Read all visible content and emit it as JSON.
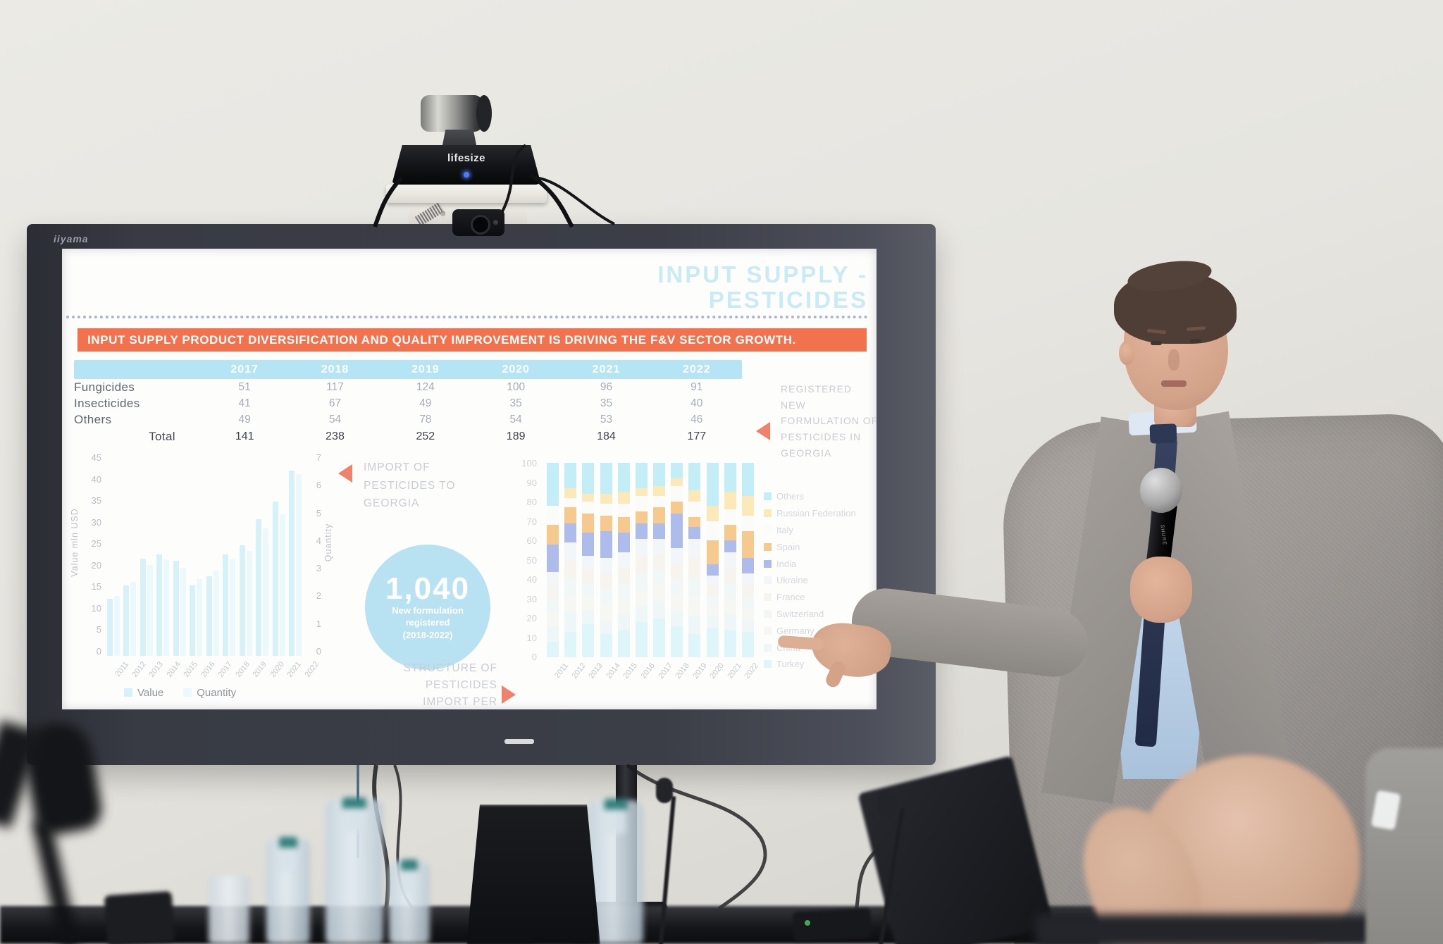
{
  "scene": {
    "tv_brand": "iiyama",
    "camera_brand": "lifesize",
    "mic_brand": "SHURE"
  },
  "colors": {
    "accent_orange": "#f3724e",
    "triangle_orange": "#f0816b",
    "title_cyan": "#c8ebf5",
    "table_header_blue": "#b5e5f4",
    "circle_blue": "#b8e2f1"
  },
  "slide": {
    "title_line1": "INPUT SUPPLY -",
    "title_line2": "PESTICIDES",
    "banner": "INPUT SUPPLY PRODUCT DIVERSIFICATION AND QUALITY IMPROVEMENT IS DRIVING THE F&V SECTOR GROWTH.",
    "table": {
      "col_headers": [
        "2017",
        "2018",
        "2019",
        "2020",
        "2021",
        "2022"
      ],
      "rows": [
        {
          "label": "Fungicides",
          "values": [
            "51",
            "117",
            "124",
            "100",
            "96",
            "91"
          ]
        },
        {
          "label": "Insecticides",
          "values": [
            "41",
            "67",
            "49",
            "35",
            "35",
            "40"
          ]
        },
        {
          "label": "Others",
          "values": [
            "49",
            "54",
            "78",
            "54",
            "53",
            "46"
          ]
        }
      ],
      "total_label": "Total",
      "total_values": [
        "141",
        "238",
        "252",
        "189",
        "184",
        "177"
      ]
    },
    "captions": {
      "registered": "REGISTERED NEW FORMULATION OF PESTICIDES IN GEORGIA",
      "import": "IMPORT OF PESTICIDES TO GEORGIA",
      "structure": "STRUCTURE OF PESTICIDES IMPORT PER COUNTRY OF ORIGIN"
    },
    "circle": {
      "big": "1,040",
      "line1": "New formulation",
      "line2": "registered",
      "line3": "(2018-2022)"
    }
  },
  "chart_data": [
    {
      "type": "bar",
      "title": "Import of pesticides to Georgia",
      "x": [
        "2011",
        "2012",
        "2013",
        "2014",
        "2015",
        "2016",
        "2017",
        "2018",
        "2019",
        "2020",
        "2021",
        "2022"
      ],
      "series": [
        {
          "name": "Value",
          "axis": "left",
          "color": "#d7f1f9",
          "values": [
            13,
            16,
            22,
            23,
            21.5,
            16,
            18,
            23,
            25,
            31,
            35,
            42
          ]
        },
        {
          "name": "Quantity",
          "axis": "right",
          "color": "#ebf8fc",
          "values": [
            2.1,
            2.6,
            3.2,
            3.4,
            3.1,
            2.7,
            3.0,
            3.4,
            3.7,
            4.5,
            5.0,
            6.4
          ]
        }
      ],
      "ylabel_left": "Value mln USD",
      "ylabel_right": "Quantity",
      "ylim_left": [
        0,
        45
      ],
      "ylim_right": [
        0,
        7
      ],
      "yticks_left": [
        "45",
        "40",
        "35",
        "30",
        "25",
        "20",
        "15",
        "10",
        "5",
        "0"
      ],
      "yticks_right": [
        "7",
        "6",
        "5",
        "4",
        "3",
        "2",
        "1",
        "0"
      ],
      "grid": false,
      "legend_position": "bottom"
    },
    {
      "type": "bar",
      "subtype": "stacked-100pct",
      "title": "Structure of pesticides import per country of origin",
      "units": "percent",
      "x": [
        "2011",
        "2012",
        "2013",
        "2014",
        "2015",
        "2016",
        "2017",
        "2018",
        "2019",
        "2020",
        "2021",
        "2022"
      ],
      "ylim": [
        0,
        100
      ],
      "yticks": [
        "100",
        "90",
        "80",
        "70",
        "60",
        "50",
        "40",
        "30",
        "20",
        "10",
        "0"
      ],
      "grid": false,
      "legend_position": "right",
      "series": [
        {
          "name": "Others",
          "color": "#c3eef8",
          "values": [
            22,
            13,
            16,
            16,
            15,
            13,
            12,
            8,
            14,
            22,
            15,
            17
          ]
        },
        {
          "name": "Russian Federation",
          "color": "#fbe9b9",
          "values": [
            0,
            5,
            4,
            5,
            6,
            4,
            5,
            4,
            6,
            8,
            9,
            10
          ]
        },
        {
          "name": "Italy",
          "color": "#fbfbf9",
          "values": [
            10,
            5,
            6,
            6,
            7,
            8,
            6,
            8,
            8,
            10,
            8,
            8
          ]
        },
        {
          "name": "Spain",
          "color": "#f6c98e",
          "values": [
            10,
            8,
            10,
            8,
            8,
            6,
            8,
            6,
            5,
            12,
            8,
            14
          ]
        },
        {
          "name": "India",
          "color": "#aebcec",
          "values": [
            14,
            10,
            12,
            14,
            10,
            8,
            8,
            18,
            6,
            6,
            6,
            8
          ]
        },
        {
          "name": "Ukraine",
          "color": "#f3f6f8",
          "values": [
            7,
            9,
            7,
            8,
            8,
            9,
            8,
            8,
            10,
            5,
            8,
            6
          ]
        },
        {
          "name": "France",
          "color": "#f7f4ef",
          "values": [
            7,
            9,
            7,
            8,
            8,
            9,
            8,
            8,
            10,
            5,
            8,
            6
          ]
        },
        {
          "name": "Switzerland",
          "color": "#f1f6f7",
          "values": [
            7,
            9,
            7,
            8,
            8,
            9,
            8,
            8,
            10,
            6,
            8,
            6
          ]
        },
        {
          "name": "Germany",
          "color": "#f6f6f3",
          "values": [
            7,
            9,
            7,
            8,
            8,
            8,
            8,
            8,
            10,
            5,
            8,
            6
          ]
        },
        {
          "name": "China",
          "color": "#eef6f8",
          "values": [
            8,
            10,
            7,
            7,
            8,
            8,
            9,
            8,
            9,
            6,
            8,
            6
          ]
        },
        {
          "name": "Turkey",
          "color": "#def5fa",
          "values": [
            8,
            13,
            17,
            12,
            14,
            18,
            20,
            16,
            12,
            15,
            14,
            13
          ]
        }
      ]
    }
  ]
}
